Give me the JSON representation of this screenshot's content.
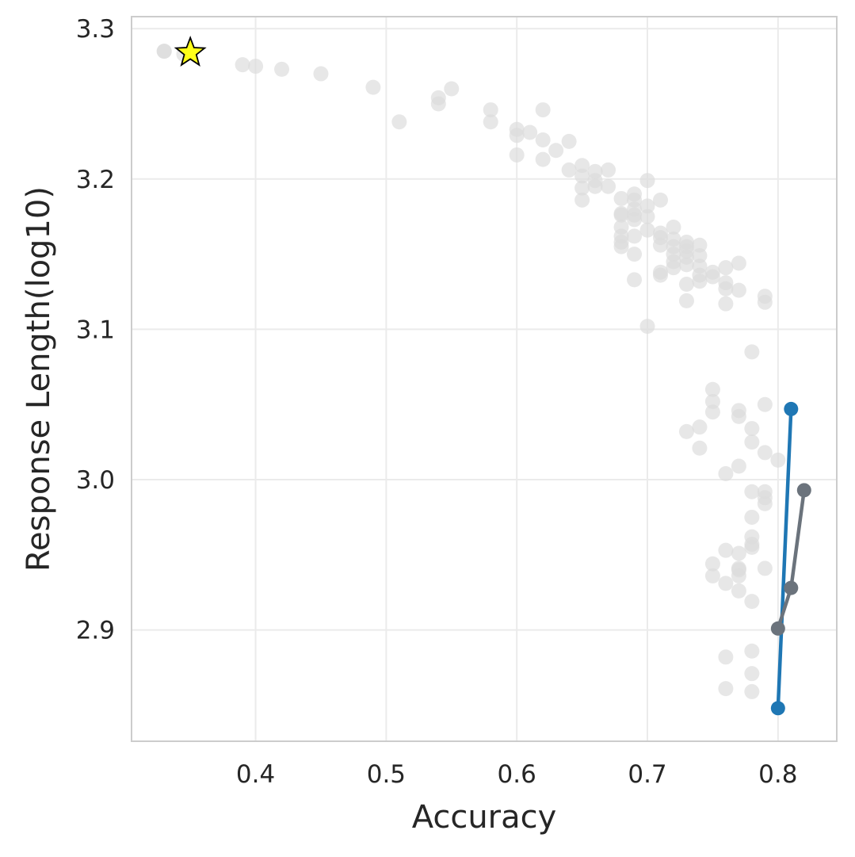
{
  "chart_data": {
    "type": "scatter",
    "title": "",
    "xlabel": "Accuracy",
    "ylabel": "Response Length(log10)",
    "xlim": [
      0.305,
      0.845
    ],
    "ylim": [
      2.826,
      3.308
    ],
    "xticks": [
      0.4,
      0.5,
      0.6,
      0.7,
      0.8
    ],
    "xtick_labels": [
      "0.4",
      "0.5",
      "0.6",
      "0.7",
      "0.8"
    ],
    "yticks": [
      2.9,
      3.0,
      3.1,
      3.2,
      3.3
    ],
    "ytick_labels": [
      "2.9",
      "3.0",
      "3.1",
      "3.2",
      "3.3"
    ],
    "grid": true,
    "colors": {
      "background_points": "#dcdcdc",
      "blue_line": "#1f77b4",
      "gray_line": "#6b737c",
      "star_fill": "#ffff19",
      "star_edge": "#000000",
      "grid": "#ebebeb",
      "frame": "#cccccc"
    },
    "background_points": {
      "x": [
        0.33,
        0.33,
        0.345,
        0.39,
        0.4,
        0.42,
        0.45,
        0.49,
        0.51,
        0.54,
        0.54,
        0.55,
        0.58,
        0.58,
        0.6,
        0.6,
        0.6,
        0.61,
        0.62,
        0.62,
        0.62,
        0.63,
        0.64,
        0.64,
        0.65,
        0.65,
        0.65,
        0.65,
        0.66,
        0.66,
        0.66,
        0.67,
        0.67,
        0.68,
        0.68,
        0.68,
        0.68,
        0.68,
        0.68,
        0.68,
        0.69,
        0.69,
        0.69,
        0.69,
        0.69,
        0.69,
        0.69,
        0.69,
        0.7,
        0.7,
        0.7,
        0.7,
        0.7,
        0.71,
        0.71,
        0.71,
        0.71,
        0.71,
        0.71,
        0.72,
        0.72,
        0.72,
        0.72,
        0.72,
        0.72,
        0.73,
        0.73,
        0.73,
        0.73,
        0.73,
        0.73,
        0.73,
        0.74,
        0.74,
        0.74,
        0.74,
        0.74,
        0.75,
        0.75,
        0.76,
        0.76,
        0.76,
        0.76,
        0.77,
        0.77,
        0.78,
        0.79,
        0.79,
        0.75,
        0.75,
        0.75,
        0.73,
        0.74,
        0.74,
        0.77,
        0.77,
        0.77,
        0.78,
        0.78,
        0.79,
        0.79,
        0.8,
        0.76,
        0.77,
        0.78,
        0.78,
        0.79,
        0.79,
        0.79,
        0.78,
        0.78,
        0.78,
        0.76,
        0.77,
        0.75,
        0.75,
        0.77,
        0.77,
        0.76,
        0.79,
        0.77,
        0.78,
        0.76,
        0.78,
        0.78,
        0.76,
        0.78
      ],
      "y": [
        3.285,
        3.285,
        3.283,
        3.276,
        3.275,
        3.273,
        3.27,
        3.261,
        3.238,
        3.254,
        3.25,
        3.26,
        3.246,
        3.238,
        3.233,
        3.229,
        3.216,
        3.231,
        3.246,
        3.226,
        3.213,
        3.219,
        3.225,
        3.206,
        3.209,
        3.202,
        3.194,
        3.186,
        3.205,
        3.199,
        3.195,
        3.206,
        3.195,
        3.187,
        3.177,
        3.176,
        3.168,
        3.162,
        3.158,
        3.155,
        3.19,
        3.186,
        3.18,
        3.176,
        3.173,
        3.162,
        3.15,
        3.133,
        3.199,
        3.182,
        3.175,
        3.166,
        3.102,
        3.186,
        3.164,
        3.161,
        3.156,
        3.138,
        3.136,
        3.168,
        3.16,
        3.155,
        3.15,
        3.145,
        3.141,
        3.158,
        3.155,
        3.152,
        3.148,
        3.143,
        3.13,
        3.119,
        3.156,
        3.149,
        3.142,
        3.136,
        3.132,
        3.138,
        3.135,
        3.141,
        3.131,
        3.127,
        3.117,
        3.144,
        3.126,
        3.085,
        3.122,
        3.118,
        3.06,
        3.052,
        3.045,
        3.032,
        3.035,
        3.021,
        3.046,
        3.042,
        3.009,
        3.034,
        3.025,
        3.05,
        3.018,
        3.013,
        3.004,
        2.951,
        2.992,
        2.975,
        2.992,
        2.988,
        2.984,
        2.962,
        2.957,
        2.955,
        2.953,
        2.941,
        2.944,
        2.936,
        2.94,
        2.936,
        2.931,
        2.941,
        2.926,
        2.919,
        2.882,
        2.886,
        2.871,
        2.861,
        2.859
      ]
    },
    "series": [
      {
        "x": [
          0.8,
          0.81
        ],
        "y": [
          2.848,
          3.047
        ],
        "color": "#1f77b4"
      },
      {
        "x": [
          0.8,
          0.81,
          0.82
        ],
        "y": [
          2.901,
          2.928,
          2.993
        ],
        "color": "#6b737c"
      }
    ],
    "star_point": {
      "x": 0.35,
      "y": 3.284
    }
  }
}
